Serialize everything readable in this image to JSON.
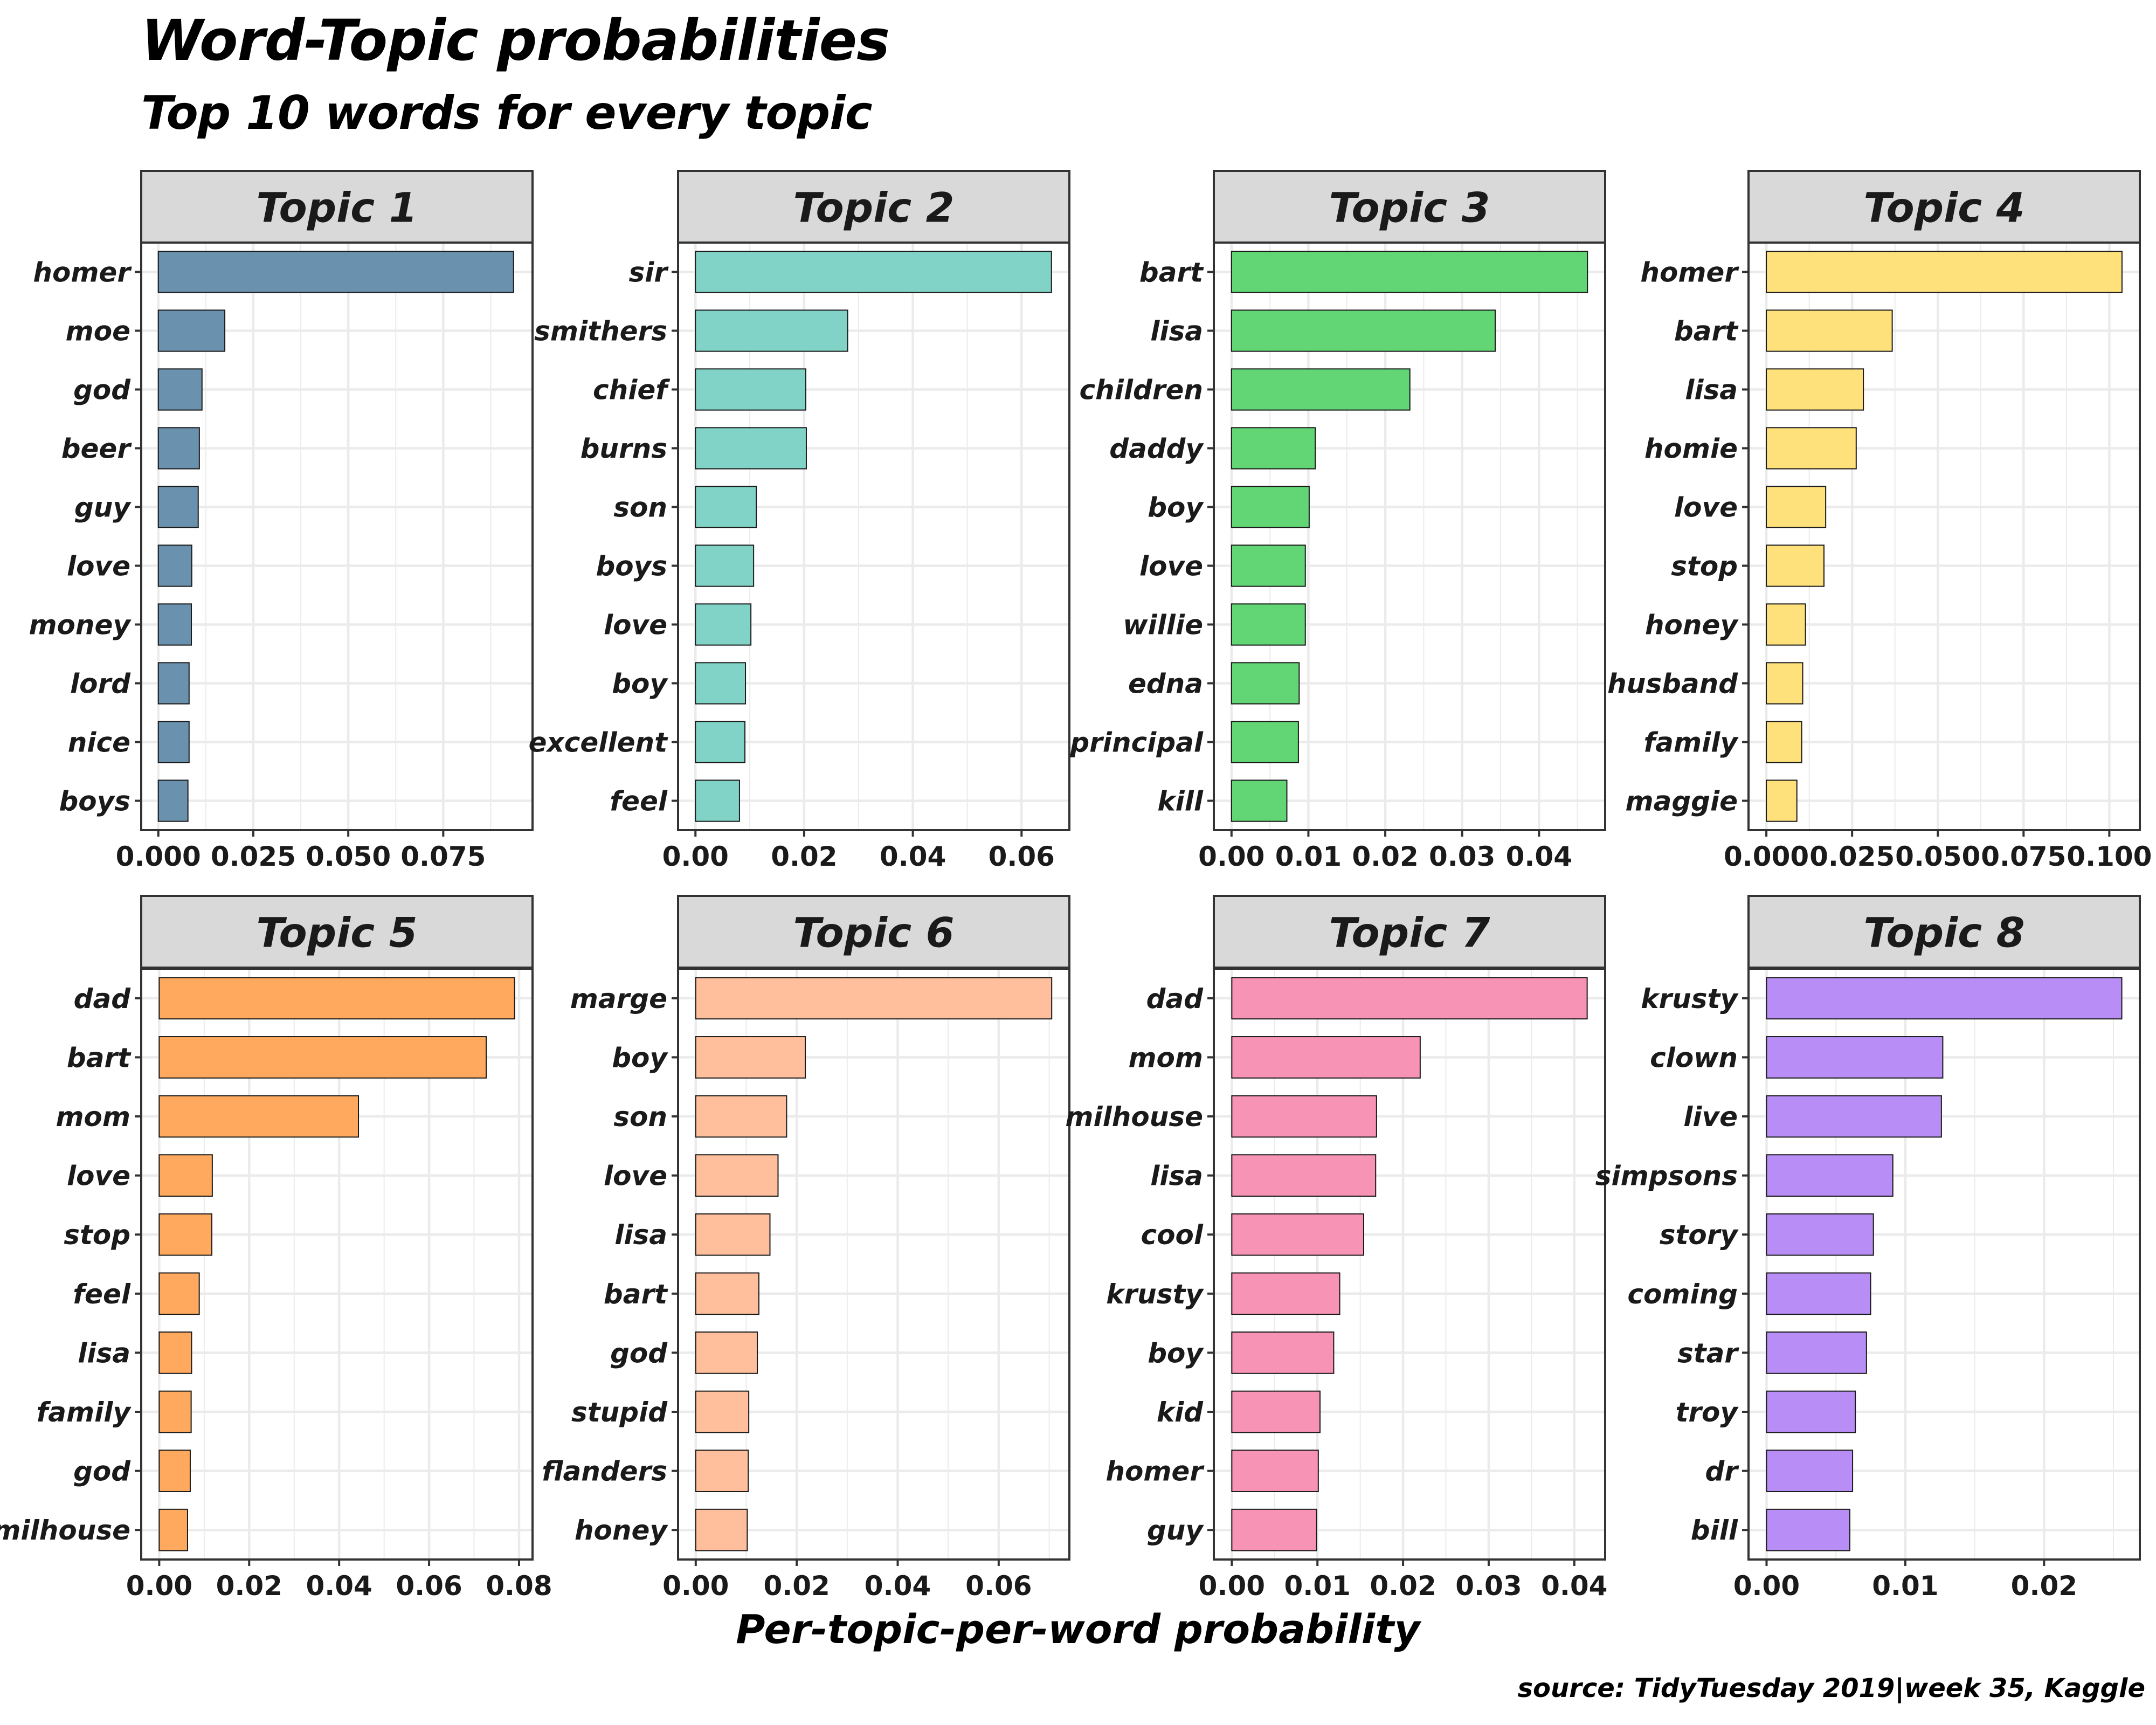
{
  "title": "Word-Topic probabilities",
  "subtitle": "Top 10 words for every topic",
  "xlabel": "Per-topic-per-word probability",
  "caption": "source: TidyTuesday 2019|week 35, Kaggle",
  "colors": {
    "strip_bg": "#d9d9d9",
    "grid": "#ebebeb",
    "bar_stroke": "#1a1a1a",
    "topic_1": "#6a91ae",
    "topic_2": "#80d3c6",
    "topic_3": "#62d675",
    "topic_4": "#ffe17c",
    "topic_5": "#ffa95e",
    "topic_6": "#ffbf9c",
    "topic_7": "#f793b4",
    "topic_8": "#b88ef6"
  },
  "chart_data": [
    {
      "type": "bar",
      "orientation": "horizontal",
      "facet": "Topic 1",
      "categories": [
        "homer",
        "moe",
        "god",
        "beer",
        "guy",
        "love",
        "money",
        "lord",
        "nice",
        "boys"
      ],
      "values": [
        0.0935,
        0.0175,
        0.0115,
        0.0108,
        0.0105,
        0.0088,
        0.0087,
        0.0081,
        0.0081,
        0.0078
      ],
      "xlim": [
        -0.0045,
        0.0985
      ],
      "xticks": [
        0,
        0.025,
        0.05,
        0.075
      ],
      "xtick_labels": [
        "0.000",
        "0.025",
        "0.050",
        "0.075"
      ]
    },
    {
      "type": "bar",
      "orientation": "horizontal",
      "facet": "Topic 2",
      "categories": [
        "sir",
        "smithers",
        "chief",
        "burns",
        "son",
        "boys",
        "love",
        "boy",
        "excellent",
        "feel"
      ],
      "values": [
        0.0655,
        0.028,
        0.0203,
        0.0204,
        0.0112,
        0.0107,
        0.0102,
        0.0092,
        0.0091,
        0.0081
      ],
      "xlim": [
        -0.0032,
        0.0688
      ],
      "xticks": [
        0,
        0.02,
        0.04,
        0.06
      ],
      "xtick_labels": [
        "0.00",
        "0.02",
        "0.04",
        "0.06"
      ]
    },
    {
      "type": "bar",
      "orientation": "horizontal",
      "facet": "Topic 3",
      "categories": [
        "bart",
        "lisa",
        "children",
        "daddy",
        "boy",
        "love",
        "willie",
        "edna",
        "principal",
        "kill"
      ],
      "values": [
        0.0463,
        0.0343,
        0.0232,
        0.0109,
        0.0101,
        0.0096,
        0.0096,
        0.0088,
        0.0087,
        0.0072
      ],
      "xlim": [
        -0.0023,
        0.0486
      ],
      "xticks": [
        0,
        0.01,
        0.02,
        0.03,
        0.04
      ],
      "xtick_labels": [
        "0.00",
        "0.01",
        "0.02",
        "0.03",
        "0.04"
      ]
    },
    {
      "type": "bar",
      "orientation": "horizontal",
      "facet": "Topic 4",
      "categories": [
        "homer",
        "bart",
        "lisa",
        "homie",
        "love",
        "stop",
        "honey",
        "husband",
        "family",
        "maggie"
      ],
      "values": [
        0.1037,
        0.0367,
        0.0283,
        0.0262,
        0.0173,
        0.0168,
        0.0114,
        0.0106,
        0.0103,
        0.0089
      ],
      "xlim": [
        -0.0052,
        0.1089
      ],
      "xticks": [
        0,
        0.025,
        0.05,
        0.075,
        0.1
      ],
      "xtick_labels": [
        "0.000",
        "0.025",
        "0.050",
        "0.075",
        "0.100"
      ]
    },
    {
      "type": "bar",
      "orientation": "horizontal",
      "facet": "Topic 5",
      "categories": [
        "dad",
        "bart",
        "mom",
        "love",
        "stop",
        "feel",
        "lisa",
        "family",
        "god",
        "milhouse"
      ],
      "values": [
        0.079,
        0.0727,
        0.0443,
        0.0118,
        0.0117,
        0.0089,
        0.0072,
        0.0071,
        0.0069,
        0.0063
      ],
      "xlim": [
        -0.004,
        0.083
      ],
      "xticks": [
        0,
        0.02,
        0.04,
        0.06,
        0.08
      ],
      "xtick_labels": [
        "0.00",
        "0.02",
        "0.04",
        "0.06",
        "0.08"
      ]
    },
    {
      "type": "bar",
      "orientation": "horizontal",
      "facet": "Topic 6",
      "categories": [
        "marge",
        "boy",
        "son",
        "love",
        "lisa",
        "bart",
        "god",
        "stupid",
        "flanders",
        "honey"
      ],
      "values": [
        0.0705,
        0.0217,
        0.018,
        0.0163,
        0.0147,
        0.0125,
        0.0122,
        0.0105,
        0.0104,
        0.0102
      ],
      "xlim": [
        -0.0035,
        0.074
      ],
      "xticks": [
        0,
        0.02,
        0.04,
        0.06
      ],
      "xtick_labels": [
        "0.00",
        "0.02",
        "0.04",
        "0.06"
      ]
    },
    {
      "type": "bar",
      "orientation": "horizontal",
      "facet": "Topic 7",
      "categories": [
        "dad",
        "mom",
        "milhouse",
        "lisa",
        "cool",
        "krusty",
        "boy",
        "kid",
        "homer",
        "guy"
      ],
      "values": [
        0.0415,
        0.022,
        0.0169,
        0.0168,
        0.0154,
        0.0126,
        0.0119,
        0.0103,
        0.0101,
        0.0099
      ],
      "xlim": [
        -0.0021,
        0.0436
      ],
      "xticks": [
        0,
        0.01,
        0.02,
        0.03,
        0.04
      ],
      "xtick_labels": [
        "0.00",
        "0.01",
        "0.02",
        "0.03",
        "0.04"
      ]
    },
    {
      "type": "bar",
      "orientation": "horizontal",
      "facet": "Topic 8",
      "categories": [
        "krusty",
        "clown",
        "live",
        "simpsons",
        "story",
        "coming",
        "star",
        "troy",
        "dr",
        "bill"
      ],
      "values": [
        0.0256,
        0.0127,
        0.0126,
        0.0091,
        0.0077,
        0.0075,
        0.0072,
        0.0064,
        0.0062,
        0.006
      ],
      "xlim": [
        -0.0013,
        0.0269
      ],
      "xticks": [
        0,
        0.01,
        0.02
      ],
      "xtick_labels": [
        "0.00",
        "0.01",
        "0.02"
      ]
    }
  ]
}
